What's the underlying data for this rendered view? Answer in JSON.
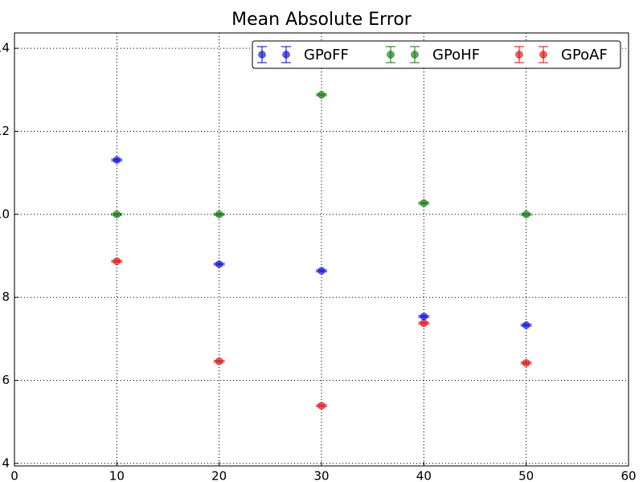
{
  "chart_data": {
    "type": "errorbar-scatter",
    "title": "Mean Absolute Error",
    "x": [
      10,
      20,
      30,
      40,
      50
    ],
    "series": [
      {
        "name": "GPoFF",
        "color": "#0000ff",
        "values": [
          11.31,
          8.8,
          8.64,
          7.54,
          7.33
        ],
        "errors": [
          0.02,
          0.02,
          0.02,
          0.02,
          0.02
        ]
      },
      {
        "name": "GPoHF",
        "color": "#008000",
        "values": [
          10.0,
          10.0,
          12.88,
          10.27,
          10.0
        ],
        "errors": [
          0.02,
          0.02,
          0.02,
          0.02,
          0.02
        ]
      },
      {
        "name": "GPoAF",
        "color": "#ff0000",
        "values": [
          8.87,
          6.46,
          5.39,
          7.38,
          6.42
        ],
        "errors": [
          0.02,
          0.02,
          0.02,
          0.02,
          0.02
        ]
      }
    ],
    "xlim": [
      0,
      60
    ],
    "xticks": [
      0,
      10,
      20,
      30,
      40,
      50,
      60
    ],
    "ylim": [
      3.94,
      14.37
    ],
    "yticks": [
      4,
      6,
      8,
      10,
      12,
      14
    ],
    "grid": true,
    "legend": "upper right"
  }
}
